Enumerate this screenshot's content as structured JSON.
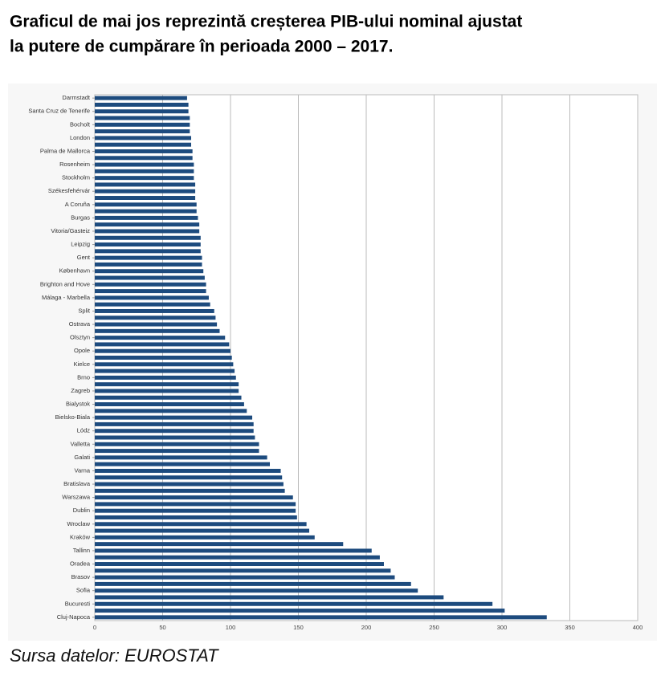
{
  "chart_data": {
    "type": "hbar",
    "title": [
      "Graficul de mai jos reprezintă creșterea PIB-ului nominal ajustat",
      "la putere de cumpărare în perioada 2000 – 2017."
    ],
    "source": "Sursa datelor: EUROSTAT",
    "categories": [
      "Darmstadt",
      null,
      "Santa Cruz de Tenerife",
      null,
      "Bocholt",
      null,
      "London",
      null,
      "Palma de Mallorca",
      null,
      "Rosenheim",
      null,
      "Stockholm",
      null,
      "Székesfehérvár",
      null,
      "A Coruña",
      null,
      "Burgas",
      null,
      "Vitoria/Gasteiz",
      null,
      "Leipzig",
      null,
      "Gent",
      null,
      "København",
      null,
      "Brighton and Hove",
      null,
      "Málaga - Marbella",
      null,
      "Split",
      null,
      "Ostrava",
      null,
      "Olsztyn",
      null,
      "Opole",
      null,
      "Kielce",
      null,
      "Brno",
      null,
      "Zagreb",
      null,
      "Bialystok",
      null,
      "Bielsko-Biala",
      null,
      "Lódz",
      null,
      "Valletta",
      null,
      "Galati",
      null,
      "Varna",
      null,
      "Bratislava",
      null,
      "Warszawa",
      null,
      "Dublin",
      null,
      "Wroclaw",
      null,
      "Kraków",
      null,
      "Tallinn",
      null,
      "Oradea",
      null,
      "Brasov",
      null,
      "Sofia",
      null,
      "Bucuresti",
      null,
      "Cluj-Napoca"
    ],
    "values": [
      68,
      69,
      69,
      70,
      70,
      70,
      71,
      71,
      72,
      72,
      73,
      73,
      73,
      74,
      74,
      74,
      75,
      75,
      76,
      77,
      77,
      78,
      78,
      78,
      79,
      79,
      80,
      81,
      82,
      82,
      84,
      85,
      88,
      89,
      90,
      92,
      96,
      99,
      100,
      101,
      102,
      103,
      104,
      106,
      106,
      108,
      110,
      112,
      116,
      117,
      117,
      118,
      121,
      121,
      127,
      129,
      137,
      138,
      139,
      140,
      146,
      148,
      148,
      149,
      156,
      158,
      162,
      183,
      204,
      210,
      213,
      218,
      221,
      233,
      238,
      257,
      293,
      302,
      333
    ],
    "color": "#1d4b7e",
    "xlim": [
      0,
      400
    ],
    "xticks": [
      0,
      50,
      100,
      150,
      200,
      250,
      300,
      350,
      400
    ],
    "grid": true
  }
}
